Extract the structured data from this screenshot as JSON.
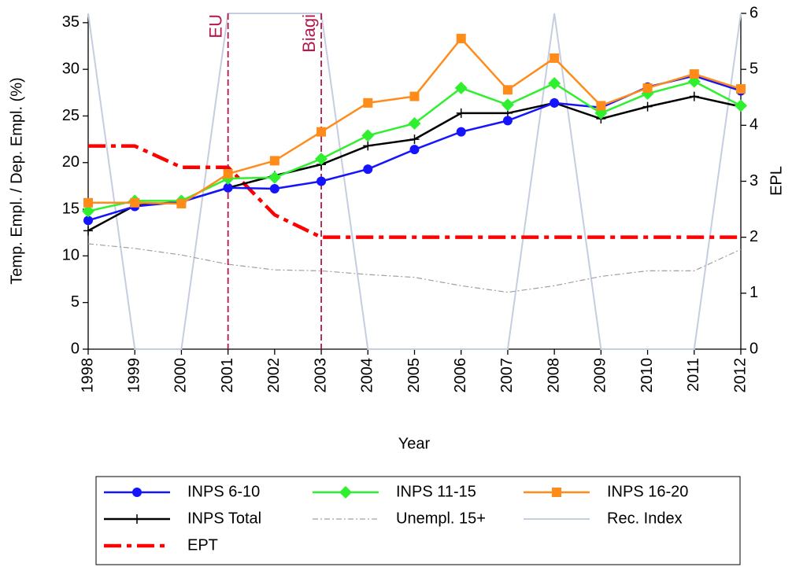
{
  "chart_data": {
    "type": "line",
    "x": [
      1998,
      1999,
      2000,
      2001,
      2002,
      2003,
      2004,
      2005,
      2006,
      2007,
      2008,
      2009,
      2010,
      2011,
      2012
    ],
    "xlim": [
      1998,
      2012
    ],
    "xticks": [
      1998,
      1999,
      2000,
      2001,
      2002,
      2003,
      2004,
      2005,
      2006,
      2007,
      2008,
      2009,
      2010,
      2011,
      2012
    ],
    "xlabel": "Year",
    "ylabel": "Temp. Empl. / Dep. Empl. (%)",
    "y2label": "EPL",
    "ylim": [
      0,
      36
    ],
    "yticks": [
      0,
      5,
      10,
      15,
      20,
      25,
      30,
      35
    ],
    "y2lim": [
      0,
      6
    ],
    "y2ticks": [
      0,
      1,
      2,
      3,
      4,
      5,
      6
    ],
    "annotations": [
      {
        "x": 2001,
        "label": "EU"
      },
      {
        "x": 2003,
        "label": "Biagi"
      }
    ],
    "annotation_color": "#b5174d",
    "series": [
      {
        "name": "INPS 6-10",
        "color": "#1414ff",
        "marker": "circle",
        "width": 2.5,
        "values": [
          13.8,
          15.3,
          15.8,
          17.3,
          17.2,
          18.0,
          19.3,
          21.4,
          23.3,
          24.5,
          26.4,
          25.9,
          28.1,
          29.3,
          27.7
        ]
      },
      {
        "name": "INPS 11-15",
        "color": "#2ef02e",
        "marker": "diamond",
        "width": 2.5,
        "values": [
          14.8,
          15.9,
          15.9,
          18.3,
          18.4,
          20.4,
          22.9,
          24.2,
          28.0,
          26.2,
          28.5,
          25.3,
          27.4,
          28.7,
          26.1
        ]
      },
      {
        "name": "INPS 16-20",
        "color": "#ff8c1a",
        "marker": "square",
        "width": 2.5,
        "values": [
          15.7,
          15.7,
          15.6,
          18.8,
          20.2,
          23.3,
          26.4,
          27.1,
          33.3,
          27.8,
          31.2,
          26.1,
          28.0,
          29.5,
          27.9
        ]
      },
      {
        "name": "INPS Total",
        "color": "#000000",
        "marker": "plus",
        "width": 2.5,
        "values": [
          12.7,
          15.4,
          15.8,
          17.3,
          18.6,
          19.8,
          21.8,
          22.5,
          25.3,
          25.3,
          26.4,
          24.7,
          26.0,
          27.1,
          26.0
        ]
      },
      {
        "name": "Unempl. 15+",
        "color": "#a0a0a0",
        "dash": "7 3 2 3",
        "width": 1.2,
        "values": [
          11.3,
          10.8,
          10.1,
          9.1,
          8.5,
          8.4,
          8.0,
          7.7,
          6.8,
          6.1,
          6.8,
          7.8,
          8.4,
          8.4,
          10.7
        ]
      },
      {
        "name": "Rec. Index",
        "color": "#c5cde0",
        "width": 2,
        "axis": "y2",
        "values": [
          6,
          0,
          0,
          6,
          6,
          6,
          0,
          0,
          0,
          0,
          6,
          0,
          0,
          0,
          6
        ]
      },
      {
        "name": "EPT",
        "color": "#ff0000",
        "dash": "22 7 6 7",
        "width": 4.5,
        "axis": "y2",
        "values": [
          3.63,
          3.63,
          3.25,
          3.25,
          2.4,
          2.0,
          2.0,
          2.0,
          2.0,
          2.0,
          2.0,
          2.0,
          2.0,
          2.0,
          2.0
        ]
      }
    ]
  }
}
